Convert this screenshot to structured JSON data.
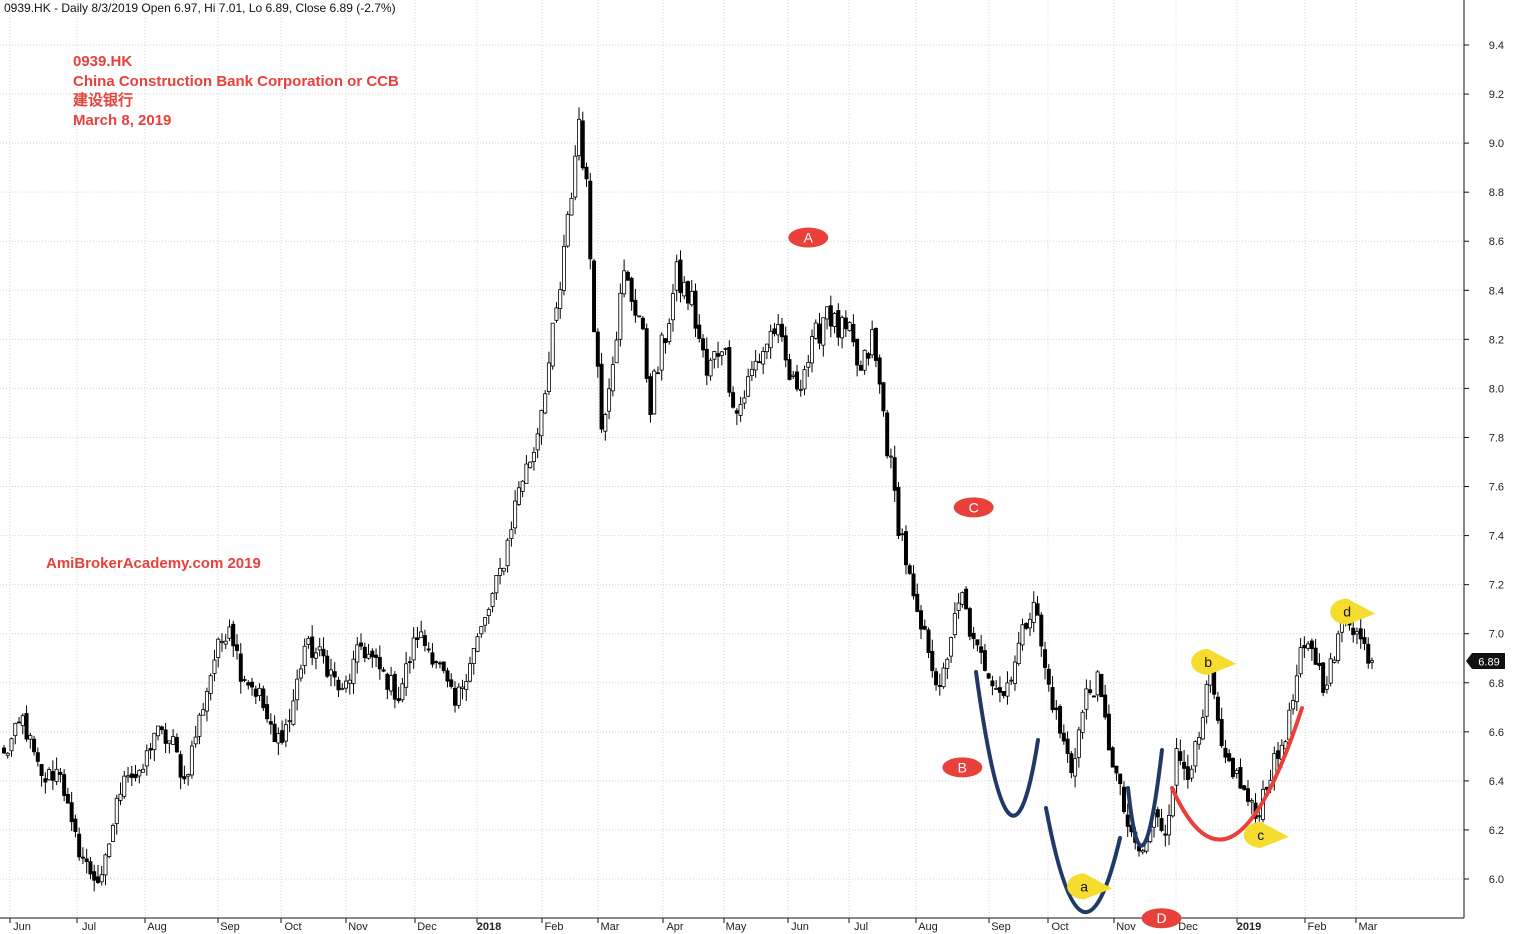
{
  "header": {
    "info": "0939.HK - Daily 8/3/2019 Open 6.97, Hi 7.01, Lo 6.89, Close 6.89 (-2.7%)"
  },
  "annotation": {
    "ticker": "0939.HK",
    "company": "China Construction Bank Corporation or CCB",
    "chinese_name": "建设银行",
    "date": "March 8, 2019",
    "watermark": "AmiBrokerAcademy.com  2019"
  },
  "colors": {
    "annotation_text": "#e8413c",
    "red_marker": "#e8413c",
    "yellow_marker": "#f5dc2e",
    "blue_curve": "#1f3a66",
    "red_curve": "#e8413c",
    "candles": "#000000",
    "grid": "#d4d4d4"
  },
  "chart_data": {
    "type": "candlestick",
    "y_axis": {
      "range": [
        5.86,
        9.48
      ],
      "ticks": [
        "6.0",
        "6.2",
        "6.4",
        "6.6",
        "6.8",
        "7.0",
        "7.2",
        "7.4",
        "7.6",
        "7.8",
        "8.0",
        "8.2",
        "8.4",
        "8.6",
        "8.8",
        "9.0",
        "9.2",
        "9.4"
      ],
      "position": "right"
    },
    "x_axis": {
      "labels": [
        "Jun",
        "Jul",
        "Aug",
        "Sep",
        "Oct",
        "Nov",
        "Dec",
        "2018",
        "Feb",
        "Mar",
        "Apr",
        "May",
        "Jun",
        "Jul",
        "Aug",
        "Sep",
        "Oct",
        "Nov",
        "Dec",
        "2019",
        "Feb",
        "Mar"
      ],
      "bold_labels": [
        "2018",
        "2019"
      ]
    },
    "grid": true,
    "last_close": "6.89",
    "close_path": [
      [
        0,
        6.5
      ],
      [
        5,
        6.65
      ],
      [
        10,
        6.4
      ],
      [
        15,
        6.45
      ],
      [
        18,
        6.2
      ],
      [
        22,
        6.05
      ],
      [
        26,
        5.98
      ],
      [
        28,
        6.15
      ],
      [
        32,
        6.45
      ],
      [
        36,
        6.4
      ],
      [
        40,
        6.6
      ],
      [
        45,
        6.55
      ],
      [
        48,
        6.4
      ],
      [
        52,
        6.65
      ],
      [
        56,
        6.9
      ],
      [
        60,
        7.05
      ],
      [
        63,
        6.85
      ],
      [
        68,
        6.75
      ],
      [
        72,
        6.55
      ],
      [
        76,
        6.65
      ],
      [
        80,
        6.95
      ],
      [
        85,
        6.9
      ],
      [
        90,
        6.75
      ],
      [
        95,
        6.95
      ],
      [
        100,
        6.85
      ],
      [
        105,
        6.75
      ],
      [
        110,
        7.0
      ],
      [
        115,
        6.9
      ],
      [
        120,
        6.7
      ],
      [
        124,
        6.9
      ],
      [
        128,
        7.05
      ],
      [
        133,
        7.3
      ],
      [
        137,
        7.6
      ],
      [
        141,
        7.75
      ],
      [
        145,
        8.1
      ],
      [
        148,
        8.4
      ],
      [
        151,
        8.8
      ],
      [
        153,
        9.1
      ],
      [
        155,
        8.8
      ],
      [
        157,
        8.3
      ],
      [
        159,
        7.85
      ],
      [
        162,
        8.15
      ],
      [
        165,
        8.45
      ],
      [
        169,
        8.3
      ],
      [
        172,
        7.95
      ],
      [
        175,
        8.15
      ],
      [
        179,
        8.45
      ],
      [
        183,
        8.35
      ],
      [
        187,
        8.05
      ],
      [
        191,
        8.2
      ],
      [
        195,
        7.9
      ],
      [
        200,
        8.1
      ],
      [
        205,
        8.25
      ],
      [
        210,
        8.0
      ],
      [
        215,
        8.15
      ],
      [
        219,
        8.35
      ],
      [
        221,
        8.25
      ],
      [
        225,
        8.2
      ],
      [
        228,
        8.05
      ],
      [
        231,
        8.2
      ],
      [
        234,
        7.9
      ],
      [
        237,
        7.55
      ],
      [
        240,
        7.3
      ],
      [
        243,
        7.05
      ],
      [
        246,
        6.95
      ],
      [
        249,
        6.75
      ],
      [
        252,
        7.0
      ],
      [
        255,
        7.15
      ],
      [
        258,
        6.95
      ],
      [
        262,
        6.85
      ],
      [
        266,
        6.75
      ],
      [
        270,
        6.95
      ],
      [
        274,
        7.15
      ],
      [
        277,
        6.85
      ],
      [
        281,
        6.6
      ],
      [
        284,
        6.45
      ],
      [
        288,
        6.75
      ],
      [
        291,
        6.8
      ],
      [
        294,
        6.55
      ],
      [
        297,
        6.35
      ],
      [
        300,
        6.15
      ],
      [
        303,
        6.1
      ],
      [
        306,
        6.25
      ],
      [
        309,
        6.2
      ],
      [
        312,
        6.5
      ],
      [
        315,
        6.45
      ],
      [
        318,
        6.55
      ],
      [
        321,
        6.85
      ],
      [
        324,
        6.5
      ],
      [
        327,
        6.45
      ],
      [
        330,
        6.35
      ],
      [
        333,
        6.25
      ],
      [
        336,
        6.4
      ],
      [
        339,
        6.5
      ],
      [
        342,
        6.65
      ],
      [
        345,
        6.9
      ],
      [
        348,
        6.95
      ],
      [
        351,
        6.8
      ],
      [
        354,
        6.9
      ],
      [
        357,
        7.1
      ],
      [
        360,
        7.0
      ],
      [
        364,
        6.89
      ]
    ],
    "markers": [
      {
        "label": "A",
        "style": "red",
        "date_index": 214,
        "price": 8.615
      },
      {
        "label": "B",
        "style": "red",
        "date_index": 255,
        "price": 6.455
      },
      {
        "label": "C",
        "style": "red",
        "date_index": 258,
        "price": 7.515
      },
      {
        "label": "D",
        "style": "red",
        "date_index": 308,
        "price": 5.84
      },
      {
        "label": "a",
        "style": "yellow",
        "date_index": 289,
        "price": 5.97
      },
      {
        "label": "b",
        "style": "yellow",
        "date_index": 322,
        "price": 6.885
      },
      {
        "label": "c",
        "style": "yellow",
        "date_index": 336,
        "price": 6.18
      },
      {
        "label": "d",
        "style": "yellow",
        "date_index": 359,
        "price": 7.09
      }
    ]
  }
}
